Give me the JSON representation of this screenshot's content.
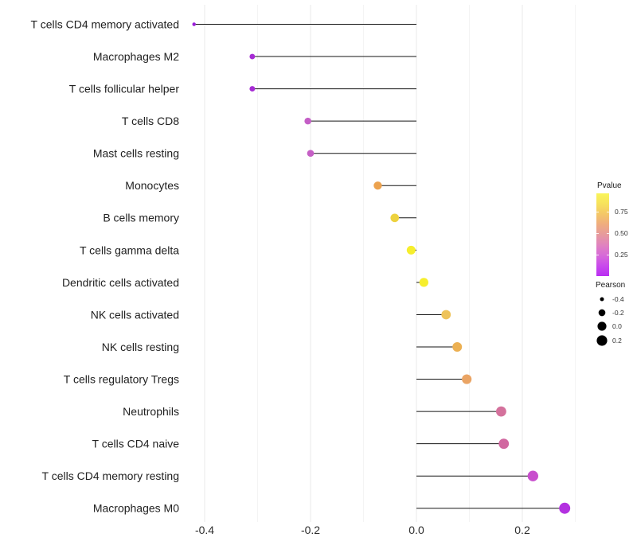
{
  "chart_data": {
    "type": "scatter",
    "subtype": "lollipop",
    "title": "",
    "xlabel": "",
    "ylabel": "",
    "x_ticks": [
      -0.4,
      -0.2,
      0.0,
      0.2
    ],
    "x_tick_labels": [
      "-0.4",
      "-0.2",
      "0.0",
      "0.2"
    ],
    "x_minor_ticks": [
      -0.3,
      -0.1,
      0.1,
      0.3
    ],
    "xlim": [
      -0.455,
      0.315
    ],
    "baseline": 0,
    "grid": "vertical-only",
    "points": [
      {
        "label": "T cells CD4 memory activated",
        "pearson": -0.42,
        "color": "#9a20d8"
      },
      {
        "label": "Macrophages M2",
        "pearson": -0.31,
        "color": "#a62bd4"
      },
      {
        "label": "T cells follicular helper",
        "pearson": -0.31,
        "color": "#a62bd4"
      },
      {
        "label": "T cells CD8",
        "pearson": -0.205,
        "color": "#c45ec6"
      },
      {
        "label": "Mast cells resting",
        "pearson": -0.2,
        "color": "#c55fc5"
      },
      {
        "label": "Monocytes",
        "pearson": -0.073,
        "color": "#eca24e"
      },
      {
        "label": "B cells memory",
        "pearson": -0.041,
        "color": "#edd23f"
      },
      {
        "label": "T cells gamma delta",
        "pearson": -0.01,
        "color": "#f6ee2d"
      },
      {
        "label": "Dendritic cells activated",
        "pearson": 0.014,
        "color": "#f6ee2d"
      },
      {
        "label": "NK cells activated",
        "pearson": 0.056,
        "color": "#eec35a"
      },
      {
        "label": "NK cells resting",
        "pearson": 0.077,
        "color": "#ecb052"
      },
      {
        "label": "T cells regulatory  Tregs",
        "pearson": 0.095,
        "color": "#eaa464"
      },
      {
        "label": "Neutrophils",
        "pearson": 0.16,
        "color": "#d4719c"
      },
      {
        "label": "T cells CD4 naive",
        "pearson": 0.165,
        "color": "#d168a0"
      },
      {
        "label": "T cells CD4 memory resting",
        "pearson": 0.22,
        "color": "#c84fcd"
      },
      {
        "label": "Macrophages M0",
        "pearson": 0.28,
        "color": "#b331e0"
      }
    ],
    "segment_color": "#151515",
    "axis_text_color": "#2e2e2e",
    "major_grid_color": "#e8e8e8",
    "minor_grid_color": "#f4f4f4"
  },
  "legend": {
    "pvalue": {
      "title": "Pvalue",
      "ticks": [
        {
          "label": "0.75",
          "pos": 0.221
        },
        {
          "label": "0.50",
          "pos": 0.481
        },
        {
          "label": "0.25",
          "pos": 0.74
        }
      ],
      "gradient": [
        "#f9f559",
        "#f7e25c",
        "#f4c767",
        "#efac7f",
        "#e69a9e",
        "#e083bf",
        "#d76ad8",
        "#c94aec",
        "#b92ef2"
      ]
    },
    "pearson": {
      "title": "Pearson",
      "dot_color": "#000000",
      "items": [
        {
          "label": "-0.4",
          "value": -0.4
        },
        {
          "label": "-0.2",
          "value": -0.2
        },
        {
          "label": "0.0",
          "value": 0.0
        },
        {
          "label": "0.2",
          "value": 0.2
        }
      ]
    }
  }
}
